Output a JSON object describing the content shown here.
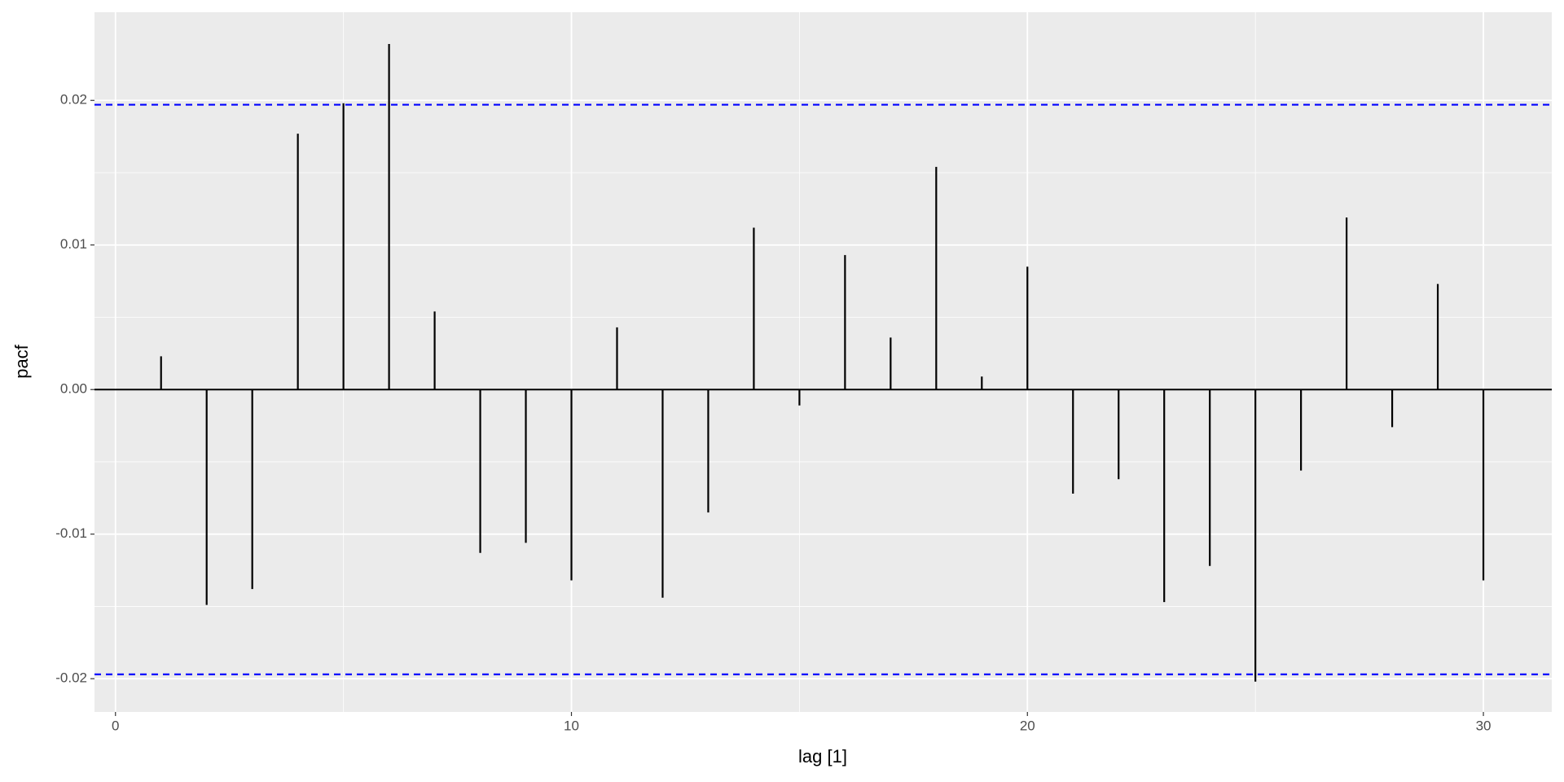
{
  "chart_data": {
    "type": "bar",
    "x_label": "lag [1]",
    "y_label": "pacf",
    "x": [
      1,
      2,
      3,
      4,
      5,
      6,
      7,
      8,
      9,
      10,
      11,
      12,
      13,
      14,
      15,
      16,
      17,
      18,
      19,
      20,
      21,
      22,
      23,
      24,
      25,
      26,
      27,
      28,
      29,
      30
    ],
    "values": [
      0.0023,
      -0.0149,
      -0.0138,
      0.0177,
      0.0198,
      0.0239,
      0.0054,
      -0.0113,
      -0.0106,
      -0.0132,
      0.0043,
      -0.0144,
      -0.0085,
      0.0112,
      -0.0011,
      0.0093,
      0.0036,
      0.0154,
      0.0009,
      0.0085,
      -0.0072,
      -0.0062,
      -0.0147,
      -0.0122,
      -0.0202,
      -0.0056,
      0.0119,
      -0.0026,
      0.0073,
      -0.0132
    ],
    "color": "#000000",
    "conf_bounds": [
      0.0197,
      -0.0197
    ],
    "conf_color": "#0000ff",
    "xlim": [
      -0.46,
      31.5
    ],
    "ylim": [
      -0.0223,
      0.0261
    ],
    "xticks": [
      0,
      10,
      20,
      30
    ],
    "yticks": [
      -0.02,
      -0.01,
      {
        "value": 0,
        "label": "0.00"
      },
      0.01,
      0.02
    ],
    "grid": true
  }
}
